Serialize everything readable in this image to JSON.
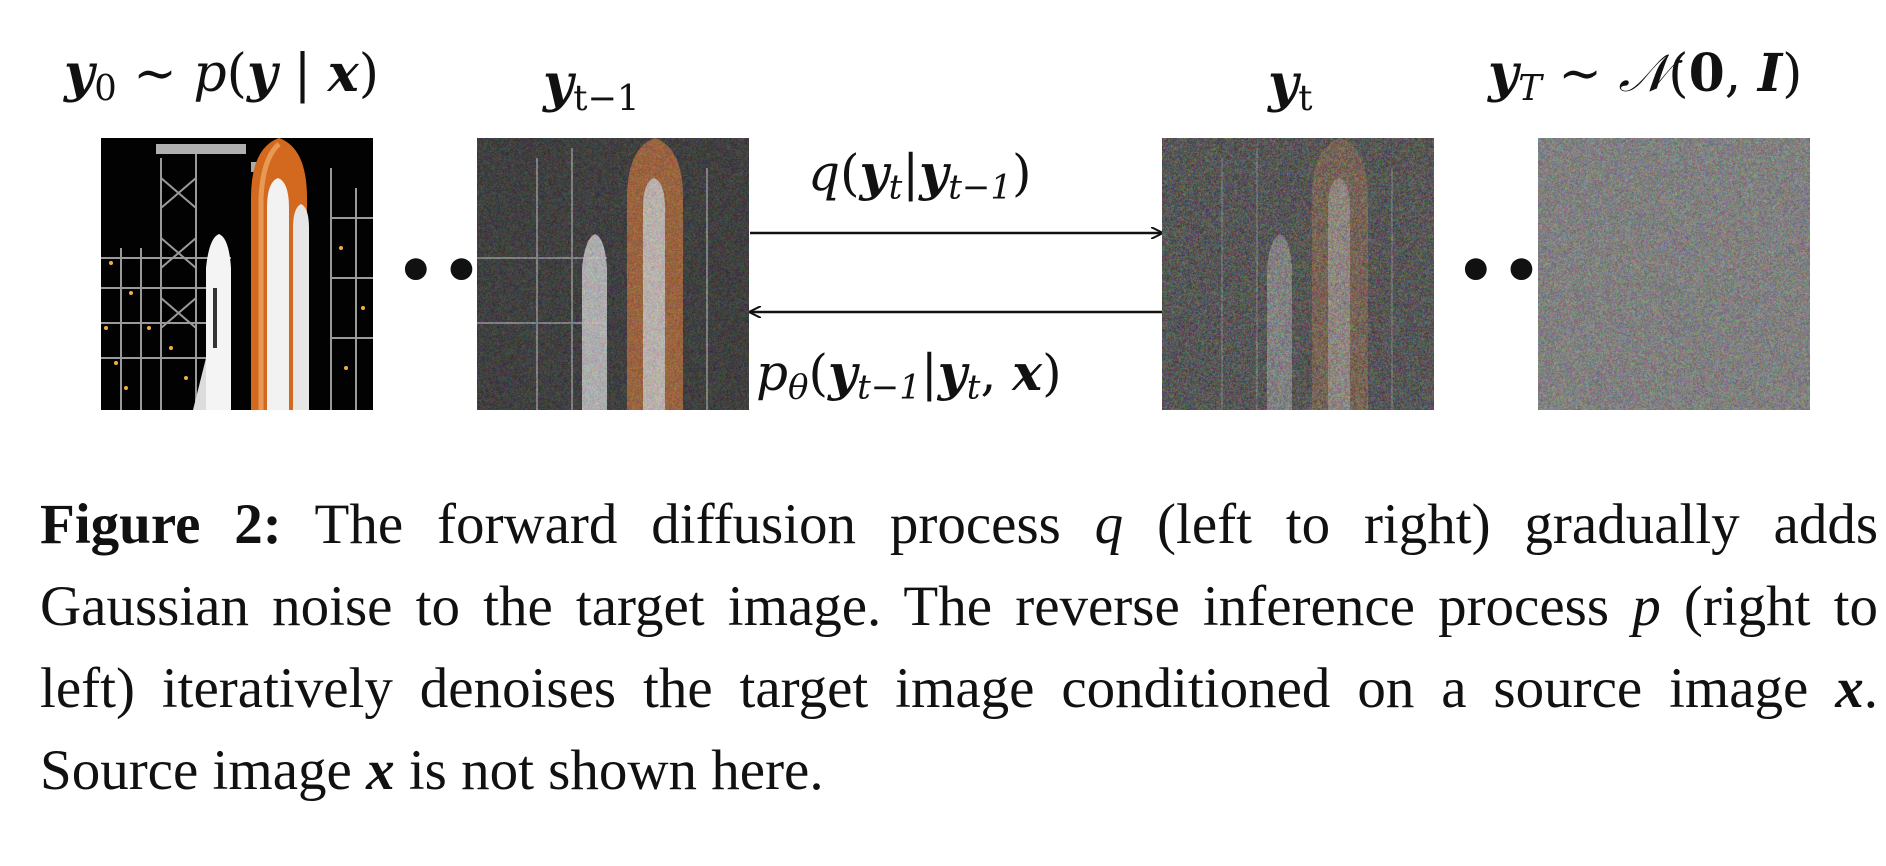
{
  "figure": {
    "labels": {
      "y0": {
        "var": "y",
        "sub": "0",
        "sim": " ∼ ",
        "dist": "p",
        "open": "(",
        "y": "y",
        "bar": " | ",
        "x": "x",
        "close": ")"
      },
      "ytm1": {
        "var": "y",
        "sub": "t−1"
      },
      "yt": {
        "var": "y",
        "sub": "t"
      },
      "yT": {
        "var": "y",
        "sub": "T",
        "sim": " ∼ ",
        "normal": "𝒩",
        "open": "(",
        "zero": "0",
        "comma": ", ",
        "identity": "I",
        "close": ")"
      }
    },
    "arrows": {
      "forward": {
        "dist": "q",
        "open": "(",
        "y1": "y",
        "s1": "t",
        "bar": "|",
        "y2": "y",
        "s2": "t−1",
        "close": ")"
      },
      "reverse": {
        "dist": "p",
        "theta": "θ",
        "open": "(",
        "y1": "y",
        "s1": "t−1",
        "bar": "|",
        "y2": "y",
        "s2": "t",
        "comma": ", ",
        "x": "x",
        "close": ")"
      }
    },
    "ellipsis_left": "••",
    "ellipsis_right": "••",
    "panels": [
      {
        "name": "clean-image",
        "noise": 0.0
      },
      {
        "name": "slightly-noisy-image",
        "noise": 0.45
      },
      {
        "name": "noisy-image",
        "noise": 0.7
      },
      {
        "name": "pure-noise-image",
        "noise": 1.0
      }
    ]
  },
  "caption": {
    "label": "Figure 2:",
    "t1": " The forward diffusion process ",
    "q": "q",
    "t2": " (left to right) gradually adds Gaussian noise to the target image.  The reverse inference process ",
    "p": "p",
    "t3": " (right to left) iteratively denoises the target image conditioned on a source image ",
    "x1": "x",
    "t4": ". Source image ",
    "x2": "x",
    "t5": " is not shown here."
  }
}
